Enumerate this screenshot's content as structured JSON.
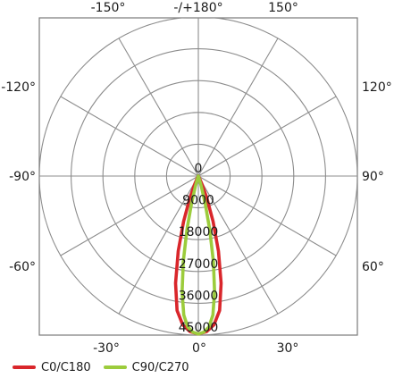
{
  "chart_data": {
    "type": "polar-line",
    "radial_ticks": [
      "0",
      "9000",
      "18000",
      "27000",
      "36000",
      "45000"
    ],
    "radial_max": 45000,
    "angle_labels_top": [
      "-150°",
      "-/+180°",
      "150°"
    ],
    "angle_labels_left": [
      "-120°",
      "-90°",
      "-60°"
    ],
    "angle_labels_right": [
      "120°",
      "90°",
      "60°"
    ],
    "angle_labels_bottom": [
      "-30°",
      "0°",
      "30°"
    ],
    "grid": true,
    "legend_position": "bottom-left",
    "series": [
      {
        "name": "C0/C180",
        "color": "#d9262b",
        "points": [
          [
            0,
            44700
          ],
          [
            3,
            44100
          ],
          [
            6,
            42300
          ],
          [
            9,
            38500
          ],
          [
            12,
            31000
          ],
          [
            15,
            22000
          ],
          [
            18,
            13500
          ],
          [
            21,
            6800
          ],
          [
            24,
            2600
          ],
          [
            27,
            600
          ],
          [
            30,
            0
          ]
        ]
      },
      {
        "name": "C90/C270",
        "color": "#9ccc3c",
        "points": [
          [
            0,
            44700
          ],
          [
            2,
            44200
          ],
          [
            4,
            42800
          ],
          [
            6,
            39500
          ],
          [
            8,
            33000
          ],
          [
            10,
            24500
          ],
          [
            12,
            15500
          ],
          [
            14,
            8000
          ],
          [
            16,
            3000
          ],
          [
            18,
            700
          ],
          [
            20,
            0
          ]
        ]
      }
    ]
  }
}
